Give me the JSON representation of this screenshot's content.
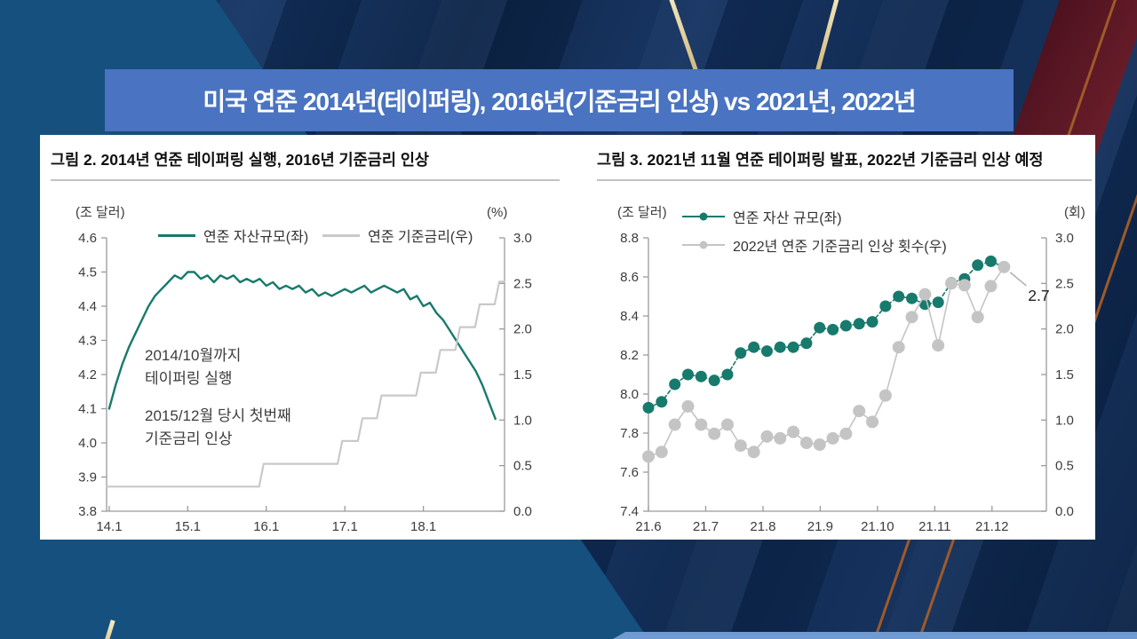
{
  "slide": {
    "title": "미국 연준 2014년(테이퍼링), 2016년(기준금리 인상) vs 2021년, 2022년"
  },
  "colors": {
    "banner_blue": "#4a73c1",
    "asset_teal": "#177a6c",
    "rate_gray": "#c9c9c9",
    "background_navy": "#0e2950",
    "background_steel": "#15507e",
    "gold_accent": "#e8d9a8",
    "orange_accent": "#a05a28",
    "maroon_accent": "#5d1623"
  },
  "chart_data": [
    {
      "type": "line",
      "title": "그림 2. 2014년 연준 테이퍼링 실행, 2016년 기준금리 인상",
      "left_axis": {
        "unit": "(조 달러)",
        "min": 3.8,
        "max": 4.6,
        "ticks": [
          "4.6",
          "4.5",
          "4.4",
          "4.3",
          "4.2",
          "4.1",
          "4.0",
          "3.9",
          "3.8"
        ]
      },
      "right_axis": {
        "unit": "(%)",
        "min": 0.0,
        "max": 3.0,
        "ticks": [
          "3.0",
          "2.5",
          "2.0",
          "1.5",
          "1.0",
          "0.5",
          "0.0"
        ]
      },
      "x_axis": {
        "min": -0.4,
        "max": 60.4,
        "ticks": [
          {
            "label": "14.1",
            "x": 0
          },
          {
            "label": "15.1",
            "x": 12
          },
          {
            "label": "16.1",
            "x": 24
          },
          {
            "label": "17.1",
            "x": 36
          },
          {
            "label": "18.1",
            "x": 48
          }
        ]
      },
      "series": [
        {
          "name": "연준 자산규모(좌)",
          "axis": "left",
          "color": "#177a6c",
          "width": 2.4,
          "x_start": 0,
          "x_step": 1,
          "values": [
            4.1,
            4.17,
            4.23,
            4.28,
            4.32,
            4.36,
            4.4,
            4.43,
            4.45,
            4.47,
            4.49,
            4.48,
            4.5,
            4.5,
            4.48,
            4.49,
            4.47,
            4.49,
            4.48,
            4.49,
            4.47,
            4.48,
            4.47,
            4.48,
            4.46,
            4.47,
            4.45,
            4.46,
            4.45,
            4.46,
            4.44,
            4.45,
            4.43,
            4.44,
            4.43,
            4.44,
            4.45,
            4.44,
            4.45,
            4.46,
            4.44,
            4.45,
            4.46,
            4.45,
            4.44,
            4.45,
            4.42,
            4.43,
            4.4,
            4.41,
            4.38,
            4.36,
            4.33,
            4.3,
            4.27,
            4.24,
            4.21,
            4.17,
            4.12,
            4.07
          ]
        },
        {
          "name": "연준 기준금리(우)",
          "axis": "right",
          "color": "#c9c9c9",
          "width": 2.2,
          "points": [
            [
              -0.4,
              0.27
            ],
            [
              22.9,
              0.27
            ],
            [
              23.6,
              0.52
            ],
            [
              34.9,
              0.52
            ],
            [
              35.6,
              0.77
            ],
            [
              38.0,
              0.77
            ],
            [
              38.7,
              1.02
            ],
            [
              40.9,
              1.02
            ],
            [
              41.6,
              1.27
            ],
            [
              46.9,
              1.27
            ],
            [
              47.6,
              1.52
            ],
            [
              49.9,
              1.52
            ],
            [
              50.6,
              1.77
            ],
            [
              52.9,
              1.77
            ],
            [
              53.6,
              2.02
            ],
            [
              55.9,
              2.02
            ],
            [
              56.6,
              2.27
            ],
            [
              58.9,
              2.27
            ],
            [
              59.6,
              2.52
            ],
            [
              60.4,
              2.52
            ]
          ]
        }
      ],
      "annotations": [
        {
          "text": "2014/10월까지\n테이퍼링 실행"
        },
        {
          "text": "2015/12월 당시 첫번째\n기준금리 인상"
        }
      ]
    },
    {
      "type": "line",
      "title": "그림 3. 2021년 11월 연준 테이퍼링 발표, 2022년 기준금리 인상 예정",
      "left_axis": {
        "unit": "(조 달러)",
        "min": 7.4,
        "max": 8.8,
        "ticks": [
          "8.8",
          "8.6",
          "8.4",
          "8.2",
          "8.0",
          "7.8",
          "7.6",
          "7.4"
        ]
      },
      "right_axis": {
        "unit": "(회)",
        "min": 0.0,
        "max": 3.0,
        "ticks": [
          "3.0",
          "2.5",
          "2.0",
          "1.5",
          "1.0",
          "0.5",
          "0.0"
        ]
      },
      "x_axis": {
        "min": 0,
        "max": 6.95,
        "ticks": [
          {
            "label": "21.6",
            "x": 0
          },
          {
            "label": "21.7",
            "x": 1
          },
          {
            "label": "21.8",
            "x": 2
          },
          {
            "label": "21.9",
            "x": 3
          },
          {
            "label": "21.10",
            "x": 4
          },
          {
            "label": "21.11",
            "x": 5
          },
          {
            "label": "21.12",
            "x": 6
          }
        ]
      },
      "series": [
        {
          "name": "연준 자산 규모(좌)",
          "axis": "left",
          "color": "#177a6c",
          "width": 1.6,
          "dash": "4,3",
          "marker": 6.5,
          "x_start": 0,
          "x_step": 0.23,
          "values": [
            7.93,
            7.96,
            8.05,
            8.1,
            8.09,
            8.07,
            8.1,
            8.21,
            8.24,
            8.22,
            8.24,
            8.24,
            8.26,
            8.34,
            8.33,
            8.35,
            8.36,
            8.37,
            8.45,
            8.5,
            8.49,
            8.46,
            8.47,
            8.57,
            8.59,
            8.66,
            8.68,
            8.65
          ]
        },
        {
          "name": "2022년 연준 기준금리 인상 횟수(우)",
          "axis": "right",
          "color": "#c4c4c4",
          "width": 1.6,
          "marker": 7,
          "x_start": 0,
          "x_step": 0.23,
          "values": [
            0.6,
            0.65,
            0.95,
            1.15,
            0.95,
            0.85,
            0.95,
            0.72,
            0.65,
            0.82,
            0.8,
            0.87,
            0.75,
            0.73,
            0.8,
            0.85,
            1.1,
            0.98,
            1.27,
            1.8,
            2.13,
            2.38,
            1.82,
            2.5,
            2.48,
            2.13,
            2.47,
            2.68
          ]
        }
      ],
      "callout": {
        "text": "2.7",
        "series": 1
      }
    }
  ]
}
